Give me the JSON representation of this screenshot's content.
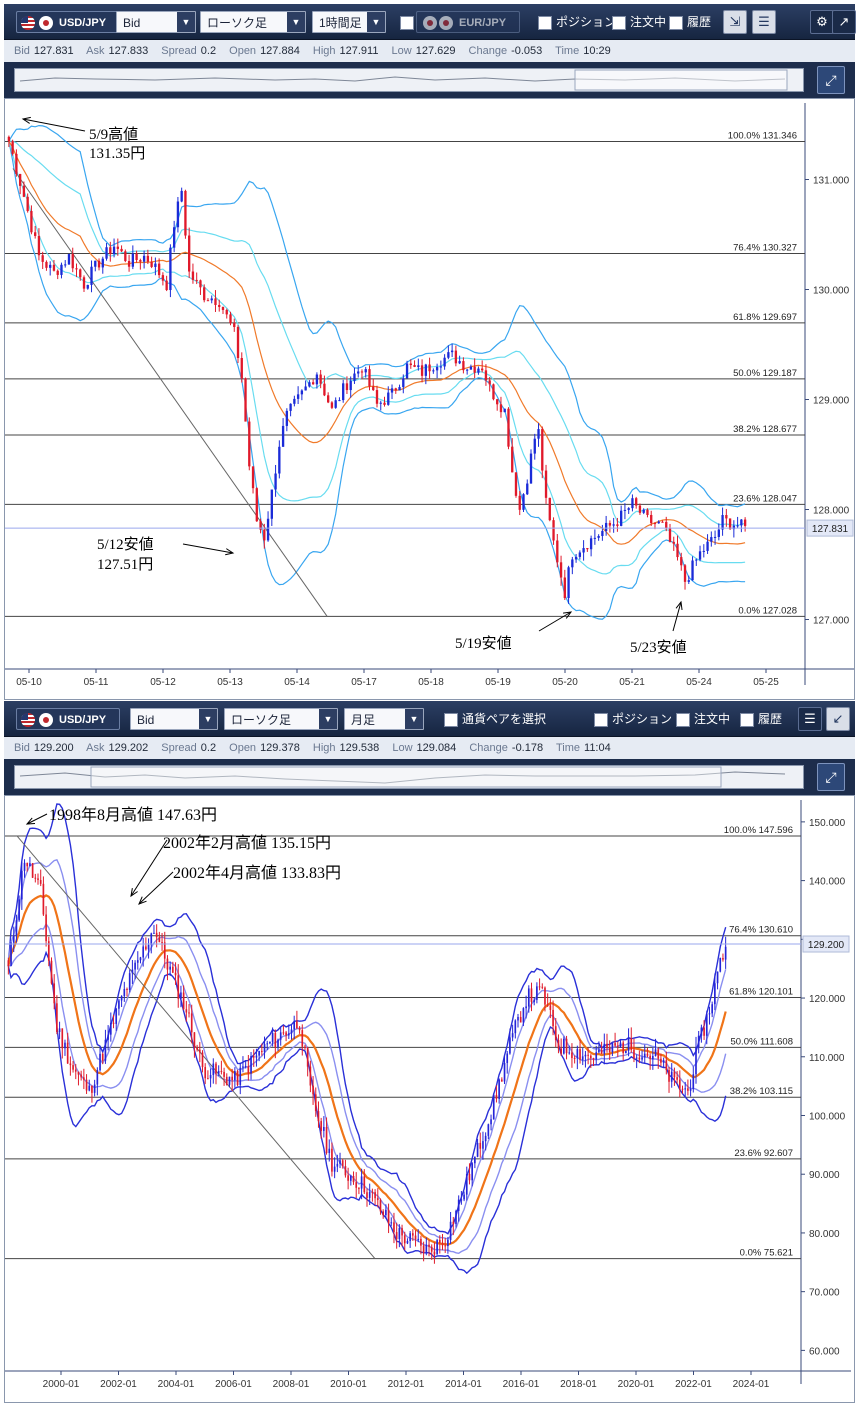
{
  "top": {
    "toolbar": {
      "pair": "USD/JPY",
      "price_type": "Bid",
      "candle_type": "ローソク足",
      "timeframe": "1時間足",
      "second_pair": "EUR/JPY",
      "position_label": "ポジション",
      "orders_label": "注文中",
      "history_label": "履歴"
    },
    "quote": {
      "bid_label": "Bid",
      "bid": "127.831",
      "ask_label": "Ask",
      "ask": "127.833",
      "spread_label": "Spread",
      "spread": "0.2",
      "open_label": "Open",
      "open": "127.884",
      "high_label": "High",
      "high": "127.911",
      "low_label": "Low",
      "low": "127.629",
      "change_label": "Change",
      "change": "-0.053",
      "time_label": "Time",
      "time": "10:29"
    },
    "colors": {
      "up": "#1a2bd8",
      "down": "#e0192a",
      "bb_outer": "#39a6f0",
      "bb_inner": "#68dcf0",
      "ma": "#f07a2a",
      "fib": "#444444",
      "current": "#9aa7ee"
    }
  },
  "bottom": {
    "toolbar": {
      "pair": "USD/JPY",
      "price_type": "Bid",
      "candle_type": "ローソク足",
      "timeframe": "月足",
      "pair_select": "通貨ペアを選択",
      "position_label": "ポジション",
      "orders_label": "注文中",
      "history_label": "履歴"
    },
    "quote": {
      "bid_label": "Bid",
      "bid": "129.200",
      "ask_label": "Ask",
      "ask": "129.202",
      "spread_label": "Spread",
      "spread": "0.2",
      "open_label": "Open",
      "open": "129.378",
      "high_label": "High",
      "high": "129.538",
      "low_label": "Low",
      "low": "129.084",
      "change_label": "Change",
      "change": "-0.178",
      "time_label": "Time",
      "time": "11:04"
    },
    "colors": {
      "up": "#2424d8",
      "down": "#e01b2b",
      "bb_outer": "#2a30d8",
      "bb_inner": "#8a8ff0",
      "ma": "#f07418",
      "fib": "#444444",
      "current": "#9aa7ee"
    }
  },
  "chart_data": [
    {
      "type": "candlestick",
      "title": "",
      "ylim": [
        126.55,
        131.55
      ],
      "y_ticks": [
        "131.000",
        "130.000",
        "129.000",
        "128.000",
        "127.000"
      ],
      "y_tick_values": [
        131,
        130,
        129,
        128,
        127
      ],
      "x_ticks": [
        "05-10",
        "05-11",
        "05-12",
        "05-13",
        "05-14",
        "05-17",
        "05-18",
        "05-19",
        "05-20",
        "05-21",
        "05-24",
        "05-25"
      ],
      "current_price": "127.831",
      "fib_levels": [
        {
          "label": "100.0%",
          "value": "131.346"
        },
        {
          "label": "76.4%",
          "value": "130.327"
        },
        {
          "label": "61.8%",
          "value": "129.697"
        },
        {
          "label": "50.0%",
          "value": "129.187"
        },
        {
          "label": "38.2%",
          "value": "128.677"
        },
        {
          "label": "23.6%",
          "value": "128.047"
        },
        {
          "label": "0.0%",
          "value": "127.028"
        }
      ],
      "annotations": [
        {
          "text": "5/9高値",
          "text2": "131.35円"
        },
        {
          "text": "5/12安値",
          "text2": "127.51円"
        },
        {
          "text": "5/19安値"
        },
        {
          "text": "5/23安値"
        }
      ],
      "series_path": [
        [
          0,
          131.35
        ],
        [
          4,
          130.85
        ],
        [
          8,
          130.3
        ],
        [
          12,
          130.15
        ],
        [
          16,
          130.3
        ],
        [
          20,
          130.05
        ],
        [
          24,
          130.25
        ],
        [
          28,
          130.4
        ],
        [
          32,
          130.25
        ],
        [
          36,
          130.3
        ],
        [
          38,
          130.25
        ],
        [
          42,
          130.05
        ],
        [
          44,
          130.6
        ],
        [
          46,
          130.9
        ],
        [
          48,
          130.15
        ],
        [
          52,
          129.95
        ],
        [
          56,
          129.9
        ],
        [
          60,
          129.6
        ],
        [
          62,
          129.2
        ],
        [
          64,
          128.4
        ],
        [
          66,
          127.9
        ],
        [
          68,
          127.75
        ],
        [
          70,
          128.15
        ],
        [
          72,
          128.6
        ],
        [
          74,
          128.85
        ],
        [
          78,
          129.05
        ],
        [
          82,
          129.25
        ],
        [
          86,
          128.9
        ],
        [
          90,
          129.15
        ],
        [
          94,
          129.3
        ],
        [
          98,
          128.95
        ],
        [
          102,
          129.05
        ],
        [
          106,
          129.3
        ],
        [
          110,
          129.25
        ],
        [
          114,
          129.35
        ],
        [
          118,
          129.4
        ],
        [
          122,
          129.3
        ],
        [
          126,
          129.3
        ],
        [
          128,
          129.1
        ],
        [
          132,
          128.9
        ],
        [
          134,
          128.35
        ],
        [
          136,
          128.0
        ],
        [
          138,
          128.3
        ],
        [
          140,
          128.65
        ],
        [
          141,
          128.7
        ],
        [
          143,
          128.05
        ],
        [
          145,
          127.7
        ],
        [
          148,
          127.25
        ],
        [
          150,
          127.6
        ],
        [
          154,
          127.7
        ],
        [
          158,
          127.8
        ],
        [
          162,
          127.9
        ],
        [
          166,
          128.05
        ],
        [
          170,
          127.9
        ],
        [
          174,
          127.85
        ],
        [
          178,
          127.55
        ],
        [
          180,
          127.35
        ],
        [
          184,
          127.6
        ],
        [
          188,
          127.75
        ],
        [
          190,
          127.9
        ],
        [
          194,
          127.86
        ],
        [
          196,
          127.83
        ]
      ],
      "series_n": 197
    },
    {
      "type": "candlestick",
      "title": "",
      "ylim": [
        57,
        151
      ],
      "y_ticks": [
        "150.000",
        "140.000",
        "130.000",
        "120.000",
        "110.000",
        "100.000",
        "90.000",
        "80.000",
        "70.000",
        "60.000"
      ],
      "y_tick_values": [
        150,
        140,
        130,
        120,
        110,
        100,
        90,
        80,
        70,
        60
      ],
      "x_ticks": [
        "2000-01",
        "2002-01",
        "2004-01",
        "2006-01",
        "2008-01",
        "2010-01",
        "2012-01",
        "2014-01",
        "2016-01",
        "2018-01",
        "2020-01",
        "2022-01",
        "2024-01"
      ],
      "current_price": "129.200",
      "fib_levels": [
        {
          "label": "100.0%",
          "value": "147.596"
        },
        {
          "label": "76.4%",
          "value": "130.610"
        },
        {
          "label": "61.8%",
          "value": "120.101"
        },
        {
          "label": "50.0%",
          "value": "111.608"
        },
        {
          "label": "38.2%",
          "value": "103.115"
        },
        {
          "label": "23.6%",
          "value": "92.607"
        },
        {
          "label": "0.0%",
          "value": "75.621"
        }
      ],
      "annotations": [
        {
          "text": "1998年8月高値 147.63円"
        },
        {
          "text": "2002年2月高値 135.15円"
        },
        {
          "text": "2002年4月高値 133.83円"
        }
      ],
      "series_path": [
        [
          0,
          125
        ],
        [
          6,
          144
        ],
        [
          12,
          138
        ],
        [
          18,
          115
        ],
        [
          24,
          108
        ],
        [
          30,
          104
        ],
        [
          36,
          112
        ],
        [
          42,
          120
        ],
        [
          48,
          126
        ],
        [
          54,
          132
        ],
        [
          58,
          127
        ],
        [
          66,
          118
        ],
        [
          72,
          108
        ],
        [
          84,
          106
        ],
        [
          96,
          112
        ],
        [
          108,
          116
        ],
        [
          112,
          104
        ],
        [
          120,
          92
        ],
        [
          132,
          88
        ],
        [
          144,
          80
        ],
        [
          156,
          77
        ],
        [
          162,
          79
        ],
        [
          168,
          86
        ],
        [
          174,
          94
        ],
        [
          180,
          102
        ],
        [
          186,
          112
        ],
        [
          192,
          120
        ],
        [
          198,
          121
        ],
        [
          204,
          112
        ],
        [
          216,
          110
        ],
        [
          228,
          112
        ],
        [
          240,
          110
        ],
        [
          246,
          106
        ],
        [
          252,
          104
        ],
        [
          256,
          112
        ],
        [
          260,
          118
        ],
        [
          264,
          126
        ],
        [
          266,
          129
        ]
      ],
      "series_n": 267
    }
  ]
}
